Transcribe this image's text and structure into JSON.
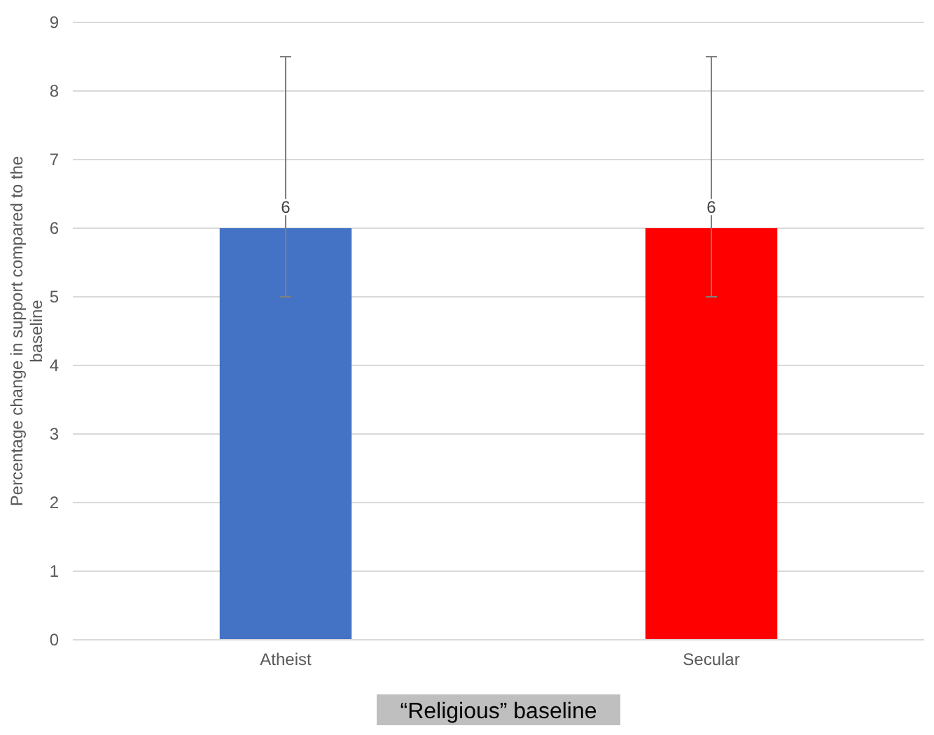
{
  "chart_data": {
    "type": "bar",
    "xlabel": "“Religious” baseline",
    "ylabel": "Percentage change in support compared to the baseline",
    "categories": [
      "Atheist",
      "Secular"
    ],
    "values": [
      6,
      6
    ],
    "colors": [
      "#4472c4",
      "#ff0000"
    ],
    "errors": [
      [
        5,
        8.5
      ],
      [
        5,
        8.5
      ]
    ],
    "data_labels": true,
    "ylim": [
      0,
      9
    ],
    "yticks": [
      0,
      1,
      2,
      3,
      4,
      5,
      6,
      7,
      8,
      9
    ],
    "grid": "y"
  }
}
